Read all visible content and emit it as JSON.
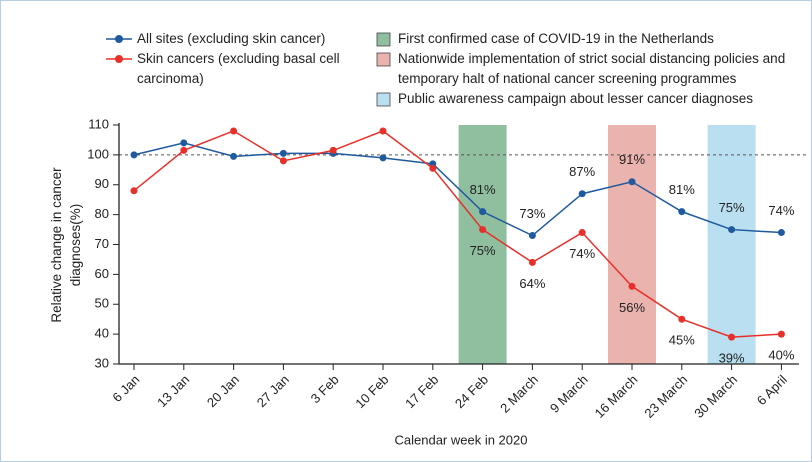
{
  "chart_data": {
    "type": "line",
    "categories": [
      "6 Jan",
      "13 Jan",
      "20 Jan",
      "27 Jan",
      "3 Feb",
      "10 Feb",
      "17 Feb",
      "24 Feb",
      "2 March",
      "9 March",
      "16 March",
      "23 March",
      "30 March",
      "6 April"
    ],
    "series": [
      {
        "name": "All sites (excluding skin cancer)",
        "color": "#1f5a9e",
        "values": [
          100,
          104,
          99.5,
          100.5,
          100.5,
          99,
          97,
          81,
          73,
          87,
          91,
          81,
          75,
          74
        ],
        "value_labels": [
          null,
          null,
          null,
          null,
          null,
          null,
          null,
          "81%",
          "73%",
          "87%",
          "91%",
          "81%",
          "75%",
          "74%"
        ]
      },
      {
        "name": "Skin cancers (excluding basal cell carcinoma)",
        "color": "#e8302a",
        "values": [
          88,
          101.5,
          108,
          98,
          101.5,
          108,
          95.5,
          75,
          64,
          74,
          56,
          45,
          39,
          40
        ],
        "value_labels": [
          null,
          null,
          null,
          null,
          null,
          null,
          null,
          "75%",
          "64%",
          "74%",
          "56%",
          "45%",
          "39%",
          "40%"
        ]
      }
    ],
    "highlights": [
      {
        "label": "First confirmed case of COVID-19 in the Netherlands",
        "at": "24 Feb",
        "color": "#8fbf9f"
      },
      {
        "label": "Nationwide implementation of strict social distancing policies and temporary halt of national cancer screening programmes",
        "at": "16 March",
        "color": "#eab3ae"
      },
      {
        "label": "Public awareness campaign about lesser cancer diagnoses",
        "at": "30 March",
        "color": "#b9dff0"
      }
    ],
    "reference_line": 100,
    "ylim": [
      30,
      110
    ],
    "yticks": [
      30,
      40,
      50,
      60,
      70,
      80,
      90,
      100,
      110
    ],
    "y_label": "Relative change in cancer diagnoses(%)",
    "x_label": "Calendar week in 2020"
  }
}
